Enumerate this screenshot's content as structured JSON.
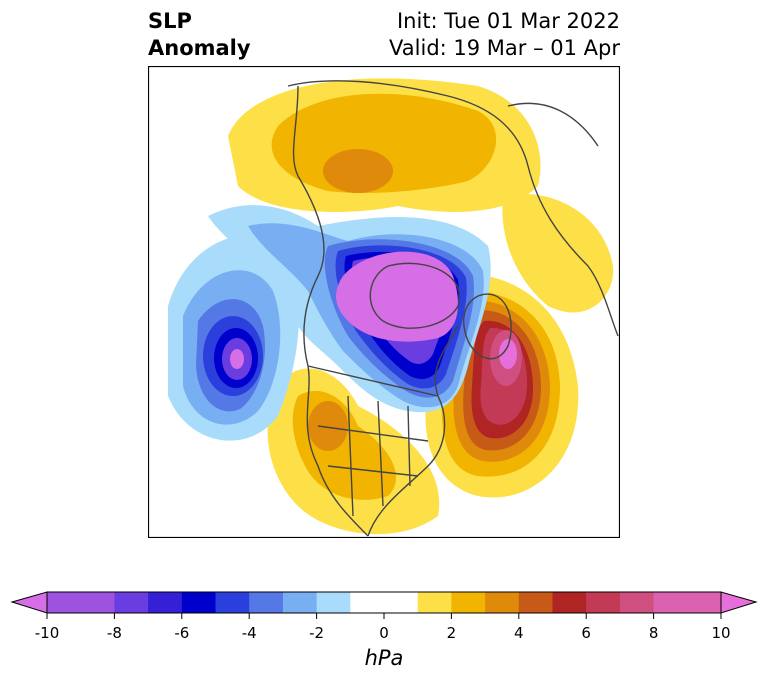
{
  "header": {
    "variable_line1": "SLP",
    "variable_line2": "Anomaly",
    "init": "Init: Tue 01 Mar 2022",
    "valid": "Valid: 19 Mar – 01 Apr"
  },
  "colorbar": {
    "unit_label": "hPa",
    "ticks": [
      "-10",
      "-8",
      "-6",
      "-4",
      "-2",
      "0",
      "2",
      "4",
      "6",
      "8",
      "10"
    ],
    "colors": [
      "#d66ee6",
      "#9e53e0",
      "#6a3de0",
      "#3520d6",
      "#0000cc",
      "#2a3fdc",
      "#5479e6",
      "#78aef2",
      "#a9dcfa",
      "#ffffff",
      "#fde047",
      "#f1b400",
      "#e08a0c",
      "#c85a18",
      "#b02424",
      "#c23a55",
      "#cf4f80",
      "#db62b0",
      "#e76fdb"
    ]
  }
}
